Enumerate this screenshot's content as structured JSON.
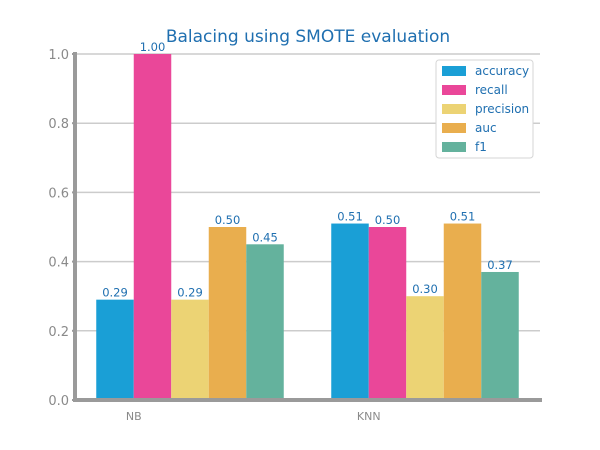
{
  "chart_data": {
    "type": "bar",
    "title": "Balacing using SMOTE evaluation",
    "xlabel": "",
    "ylabel": "",
    "categories": [
      "NB",
      "KNN"
    ],
    "series": [
      {
        "name": "accuracy",
        "values": [
          0.29,
          0.51
        ],
        "labels": [
          "0.29",
          "0.51"
        ],
        "color": "#1a9fd6"
      },
      {
        "name": "recall",
        "values": [
          1.0,
          0.5
        ],
        "labels": [
          "1.00",
          "0.50"
        ],
        "color": "#ea4799"
      },
      {
        "name": "precision",
        "values": [
          0.29,
          0.3
        ],
        "labels": [
          "0.29",
          "0.30"
        ],
        "color": "#ecd374"
      },
      {
        "name": "auc",
        "values": [
          0.5,
          0.51
        ],
        "labels": [
          "0.50",
          "0.51"
        ],
        "color": "#e9ae4e"
      },
      {
        "name": "f1",
        "values": [
          0.45,
          0.37
        ],
        "labels": [
          "0.45",
          "0.37"
        ],
        "color": "#64b29d"
      }
    ],
    "ylim": [
      0,
      1.0
    ],
    "yticks": [
      "0.0",
      "0.2",
      "0.4",
      "0.6",
      "0.8",
      "1.0"
    ],
    "grid": true,
    "legend_position": "top-right",
    "colors": {
      "title": "#1f6fb0",
      "value_label": "#1f6fb0",
      "legend_text": "#1f6fb0",
      "tick_label": "#8a8a8a",
      "axis": "#9a9a9a",
      "grid": "#cccccc"
    }
  }
}
